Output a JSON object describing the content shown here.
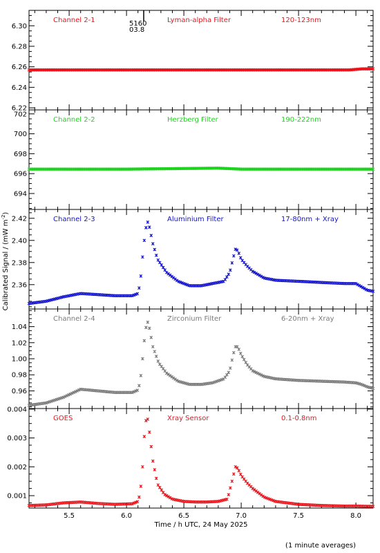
{
  "figure": {
    "xlabel": "Time / h UTC, 24 May 2025",
    "ylabel": "Calibrated Signal / (mW m",
    "ylabel_exp": "-2",
    "ylabel_end": ")",
    "footnote": "(1 minute averages)",
    "marker_top": "5160",
    "marker_bottom": "03.8",
    "colors": {
      "axes": "#000000",
      "red": "#e8141c",
      "green": "#1ed21e",
      "blue": "#1212cc",
      "gray": "#7a7a7a"
    }
  },
  "chart_data": [
    {
      "type": "scatter",
      "labels": [
        "Channel 2-1",
        "Lyman-alpha Filter",
        "120-123nm"
      ],
      "color": "#e8141c",
      "xlim": [
        5.15,
        8.15
      ],
      "ylim": [
        6.218,
        6.315
      ],
      "yticks": [
        6.22,
        6.24,
        6.26,
        6.28,
        6.3
      ],
      "yticklabels": [
        "6.22",
        "6.24",
        "6.26",
        "6.28",
        "6.30"
      ],
      "series": [
        {
          "baseline": 6.257,
          "points": [
            [
              5.15,
              6.257
            ],
            [
              6.0,
              6.257
            ],
            [
              7.0,
              6.257
            ],
            [
              7.95,
              6.257
            ],
            [
              8.05,
              6.258
            ],
            [
              8.15,
              6.258
            ]
          ]
        }
      ]
    },
    {
      "type": "scatter",
      "labels": [
        "Channel 2-2",
        "Herzberg Filter",
        "190-222nm"
      ],
      "color": "#1ed21e",
      "xlim": [
        5.15,
        8.15
      ],
      "ylim": [
        692.4,
        702.4
      ],
      "yticks": [
        694,
        696,
        698,
        700,
        702
      ],
      "yticklabels": [
        "694",
        "696",
        "698",
        "700",
        "702"
      ],
      "series": [
        {
          "baseline": 696.5,
          "points": [
            [
              5.15,
              696.45
            ],
            [
              6.0,
              696.45
            ],
            [
              6.8,
              696.55
            ],
            [
              7.0,
              696.45
            ],
            [
              8.15,
              696.45
            ]
          ]
        }
      ]
    },
    {
      "type": "scatter",
      "labels": [
        "Channel 2-3",
        "Aluminium Filter",
        "17-80nm + Xray"
      ],
      "color": "#1212cc",
      "xlim": [
        5.15,
        8.15
      ],
      "ylim": [
        2.338,
        2.428
      ],
      "yticks": [
        2.36,
        2.38,
        2.4,
        2.42
      ],
      "yticklabels": [
        "2.36",
        "2.38",
        "2.40",
        "2.42"
      ],
      "series": [
        {
          "points": [
            [
              5.15,
              2.343
            ],
            [
              5.3,
              2.345
            ],
            [
              5.45,
              2.349
            ],
            [
              5.6,
              2.352
            ],
            [
              5.75,
              2.351
            ],
            [
              5.9,
              2.35
            ],
            [
              6.05,
              2.35
            ],
            [
              6.1,
              2.352
            ],
            [
              6.12,
              2.362
            ],
            [
              6.14,
              2.385
            ],
            [
              6.16,
              2.405
            ],
            [
              6.18,
              2.418
            ],
            [
              6.2,
              2.412
            ],
            [
              6.23,
              2.397
            ],
            [
              6.27,
              2.383
            ],
            [
              6.35,
              2.371
            ],
            [
              6.45,
              2.363
            ],
            [
              6.55,
              2.359
            ],
            [
              6.65,
              2.359
            ],
            [
              6.75,
              2.361
            ],
            [
              6.85,
              2.363
            ],
            [
              6.9,
              2.371
            ],
            [
              6.93,
              2.384
            ],
            [
              6.95,
              2.392
            ],
            [
              6.97,
              2.391
            ],
            [
              7.0,
              2.383
            ],
            [
              7.05,
              2.377
            ],
            [
              7.1,
              2.372
            ],
            [
              7.2,
              2.366
            ],
            [
              7.3,
              2.364
            ],
            [
              7.5,
              2.363
            ],
            [
              7.7,
              2.362
            ],
            [
              7.9,
              2.361
            ],
            [
              8.0,
              2.361
            ],
            [
              8.05,
              2.358
            ],
            [
              8.1,
              2.355
            ],
            [
              8.15,
              2.354
            ]
          ]
        }
      ]
    },
    {
      "type": "scatter",
      "labels": [
        "Channel 2-4",
        "Zirconium Filter",
        "6-20nm + Xray"
      ],
      "color": "#7a7a7a",
      "xlim": [
        5.15,
        8.15
      ],
      "ylim": [
        0.938,
        1.062
      ],
      "yticks": [
        0.96,
        0.98,
        1.0,
        1.02,
        1.04
      ],
      "yticklabels": [
        "0.96",
        "0.98",
        "1.00",
        "1.02",
        "1.04"
      ],
      "series": [
        {
          "points": [
            [
              5.15,
              0.942
            ],
            [
              5.3,
              0.945
            ],
            [
              5.45,
              0.952
            ],
            [
              5.6,
              0.962
            ],
            [
              5.75,
              0.96
            ],
            [
              5.9,
              0.958
            ],
            [
              6.05,
              0.958
            ],
            [
              6.1,
              0.961
            ],
            [
              6.12,
              0.972
            ],
            [
              6.14,
              1.0
            ],
            [
              6.16,
              1.03
            ],
            [
              6.18,
              1.048
            ],
            [
              6.2,
              1.038
            ],
            [
              6.23,
              1.015
            ],
            [
              6.28,
              0.995
            ],
            [
              6.35,
              0.982
            ],
            [
              6.45,
              0.972
            ],
            [
              6.55,
              0.968
            ],
            [
              6.65,
              0.968
            ],
            [
              6.75,
              0.97
            ],
            [
              6.85,
              0.975
            ],
            [
              6.9,
              0.985
            ],
            [
              6.93,
              1.005
            ],
            [
              6.95,
              1.015
            ],
            [
              6.97,
              1.015
            ],
            [
              7.0,
              1.005
            ],
            [
              7.05,
              0.993
            ],
            [
              7.1,
              0.985
            ],
            [
              7.2,
              0.978
            ],
            [
              7.3,
              0.975
            ],
            [
              7.5,
              0.973
            ],
            [
              7.7,
              0.972
            ],
            [
              7.9,
              0.971
            ],
            [
              8.0,
              0.97
            ],
            [
              8.05,
              0.968
            ],
            [
              8.1,
              0.965
            ],
            [
              8.15,
              0.963
            ]
          ]
        }
      ]
    },
    {
      "type": "scatter",
      "labels": [
        "GOES",
        "Xray Sensor",
        "0.1-0.8nm"
      ],
      "color": "#e8141c",
      "xlim": [
        5.15,
        8.15
      ],
      "ylim": [
        0.00057,
        0.00402
      ],
      "yticks": [
        0.001,
        0.002,
        0.003,
        0.004
      ],
      "yticklabels": [
        "0.001",
        "0.002",
        "0.003",
        "0.004"
      ],
      "xticks": [
        5.5,
        6.0,
        6.5,
        7.0,
        7.5,
        8.0
      ],
      "xticklabels": [
        "5.5",
        "6.0",
        "6.5",
        "7.0",
        "7.5",
        "8.0"
      ],
      "series": [
        {
          "points": [
            [
              5.15,
              0.00066
            ],
            [
              5.3,
              0.00068
            ],
            [
              5.45,
              0.00075
            ],
            [
              5.6,
              0.00078
            ],
            [
              5.75,
              0.00073
            ],
            [
              5.9,
              0.0007
            ],
            [
              6.05,
              0.00072
            ],
            [
              6.1,
              0.0008
            ],
            [
              6.12,
              0.0011
            ],
            [
              6.14,
              0.002
            ],
            [
              6.16,
              0.0034
            ],
            [
              6.18,
              0.0038
            ],
            [
              6.2,
              0.0032
            ],
            [
              6.23,
              0.0022
            ],
            [
              6.27,
              0.0014
            ],
            [
              6.33,
              0.00105
            ],
            [
              6.4,
              0.00088
            ],
            [
              6.5,
              0.0008
            ],
            [
              6.6,
              0.00078
            ],
            [
              6.7,
              0.00078
            ],
            [
              6.8,
              0.0008
            ],
            [
              6.88,
              0.00088
            ],
            [
              6.92,
              0.0015
            ],
            [
              6.95,
              0.002
            ],
            [
              6.97,
              0.00195
            ],
            [
              7.0,
              0.0017
            ],
            [
              7.05,
              0.00145
            ],
            [
              7.1,
              0.00125
            ],
            [
              7.2,
              0.00095
            ],
            [
              7.3,
              0.0008
            ],
            [
              7.5,
              0.0007
            ],
            [
              7.7,
              0.00066
            ],
            [
              7.9,
              0.00064
            ],
            [
              8.0,
              0.00064
            ],
            [
              8.1,
              0.00063
            ],
            [
              8.15,
              0.00063
            ]
          ]
        }
      ]
    }
  ]
}
